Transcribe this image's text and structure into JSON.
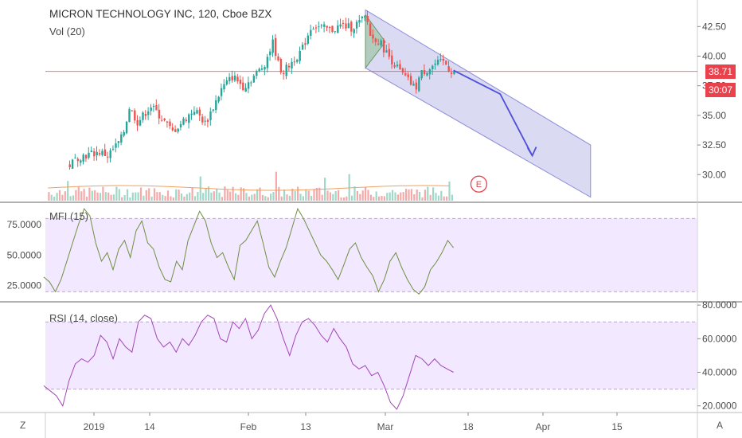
{
  "header": {
    "title": "MICRON TECHNOLOGY INC, 120, Cboe BZX",
    "volume_label": "Vol (20)"
  },
  "price_tags": {
    "last": "38.71",
    "countdown": "30:07"
  },
  "earnings_marker": "E",
  "bottom_bar": {
    "left_button": "Z",
    "right_button": "A"
  },
  "colors": {
    "up": "#26a69a",
    "down": "#ef5350",
    "channel": "#8c8cd8",
    "mfi": "#6f8f3f",
    "rsi": "#a246b8",
    "band": "#e9d8ff",
    "arrow": "#4f4fd9",
    "last_line": "#ef5350"
  },
  "chart_data": [
    {
      "type": "candlestick",
      "title": "MICRON TECHNOLOGY INC, 120, Cboe BZX",
      "y_ticks": [
        "30.00",
        "32.50",
        "35.00",
        "37.50",
        "40.00",
        "42.50"
      ],
      "ylim": [
        27.8,
        44.2
      ],
      "x_ticks": [
        "2019",
        "14",
        "Feb",
        "13",
        "Mar",
        "18",
        "Apr",
        "15"
      ],
      "last_price": 38.71,
      "close_path": [
        {
          "x": "2018-12-26",
          "y": 30.8
        },
        {
          "x": "2018-12-28",
          "y": 31.5
        },
        {
          "x": "2019-01-02",
          "y": 31.9
        },
        {
          "x": "2019-01-04",
          "y": 31.6
        },
        {
          "x": "2019-01-07",
          "y": 32.9
        },
        {
          "x": "2019-01-08",
          "y": 33.9
        },
        {
          "x": "2019-01-09",
          "y": 35.7
        },
        {
          "x": "2019-01-11",
          "y": 34.4
        },
        {
          "x": "2019-01-14",
          "y": 35.8
        },
        {
          "x": "2019-01-16",
          "y": 34.8
        },
        {
          "x": "2019-01-18",
          "y": 33.6
        },
        {
          "x": "2019-01-22",
          "y": 35.5
        },
        {
          "x": "2019-01-24",
          "y": 34.3
        },
        {
          "x": "2019-01-27",
          "y": 37.3
        },
        {
          "x": "2019-01-29",
          "y": 38.3
        },
        {
          "x": "2019-01-31",
          "y": 37.4
        },
        {
          "x": "2019-02-04",
          "y": 39.2
        },
        {
          "x": "2019-02-06",
          "y": 41.2
        },
        {
          "x": "2019-02-07",
          "y": 39.4
        },
        {
          "x": "2019-02-08",
          "y": 38.6
        },
        {
          "x": "2019-02-12",
          "y": 40.5
        },
        {
          "x": "2019-02-14",
          "y": 42.6
        },
        {
          "x": "2019-02-18",
          "y": 42.2
        },
        {
          "x": "2019-02-20",
          "y": 42.6
        },
        {
          "x": "2019-02-22",
          "y": 42.4
        },
        {
          "x": "2019-02-25",
          "y": 43.3
        },
        {
          "x": "2019-02-26",
          "y": 41.4
        },
        {
          "x": "2019-02-27",
          "y": 41.5
        },
        {
          "x": "2019-02-28",
          "y": 41.0
        },
        {
          "x": "2019-03-01",
          "y": 40.3
        },
        {
          "x": "2019-03-04",
          "y": 38.6
        },
        {
          "x": "2019-03-06",
          "y": 37.7
        },
        {
          "x": "2019-03-07",
          "y": 37.2
        },
        {
          "x": "2019-03-08",
          "y": 38.5
        },
        {
          "x": "2019-03-11",
          "y": 39.3
        },
        {
          "x": "2019-03-13",
          "y": 39.5
        },
        {
          "x": "2019-03-14",
          "y": 38.8
        },
        {
          "x": "2019-03-15",
          "y": 38.71
        }
      ],
      "channel": {
        "upper": [
          {
            "x": "2019-02-25",
            "y": 43.9
          },
          {
            "x": "2019-04-10",
            "y": 32.5
          }
        ],
        "lower": [
          {
            "x": "2019-02-25",
            "y": 39.0
          },
          {
            "x": "2019-04-10",
            "y": 28.1
          }
        ]
      },
      "projection_arrow": [
        {
          "x": "2019-03-15",
          "y": 38.8
        },
        {
          "x": "2019-03-24",
          "y": 36.8
        },
        {
          "x": "2019-03-30",
          "y": 31.6
        }
      ],
      "triangle": [
        {
          "x": "2019-02-25",
          "y": 39.0
        },
        {
          "x": "2019-02-25",
          "y": 43.5
        },
        {
          "x": "2019-03-01",
          "y": 41.2
        }
      ]
    },
    {
      "type": "line",
      "title": "MFI (15)",
      "y_ticks": [
        "25.0000",
        "50.0000",
        "75.0000"
      ],
      "ylim": [
        13,
        92
      ],
      "bands": [
        20,
        80
      ],
      "series": [
        {
          "name": "MFI (15)",
          "values": [
            32,
            28,
            20,
            30,
            45,
            60,
            75,
            88,
            82,
            60,
            45,
            52,
            38,
            55,
            62,
            48,
            70,
            78,
            60,
            55,
            40,
            30,
            28,
            45,
            38,
            62,
            74,
            86,
            78,
            60,
            48,
            52,
            40,
            30,
            58,
            62,
            70,
            78,
            60,
            40,
            32,
            45,
            56,
            72,
            88,
            80,
            70,
            60,
            50,
            45,
            38,
            30,
            42,
            55,
            60,
            48,
            40,
            33,
            20,
            30,
            45,
            52,
            40,
            30,
            22,
            18,
            24,
            38,
            44,
            52,
            62,
            56
          ]
        }
      ]
    },
    {
      "type": "line",
      "title": "RSI (14, close)",
      "y_ticks": [
        "20.0000",
        "40.0000",
        "60.0000",
        "80.0000"
      ],
      "ylim": [
        17,
        81
      ],
      "bands": [
        30,
        70
      ],
      "series": [
        {
          "name": "RSI (14, close)",
          "values": [
            32,
            29,
            26,
            20,
            35,
            45,
            48,
            46,
            50,
            62,
            58,
            48,
            60,
            55,
            52,
            70,
            74,
            72,
            60,
            55,
            58,
            52,
            60,
            56,
            62,
            70,
            74,
            72,
            60,
            58,
            70,
            66,
            72,
            60,
            65,
            75,
            80,
            72,
            60,
            50,
            62,
            70,
            72,
            68,
            62,
            58,
            66,
            60,
            55,
            45,
            42,
            44,
            38,
            40,
            32,
            22,
            18,
            26,
            38,
            50,
            48,
            44,
            48,
            44,
            42,
            40
          ]
        }
      ]
    }
  ]
}
